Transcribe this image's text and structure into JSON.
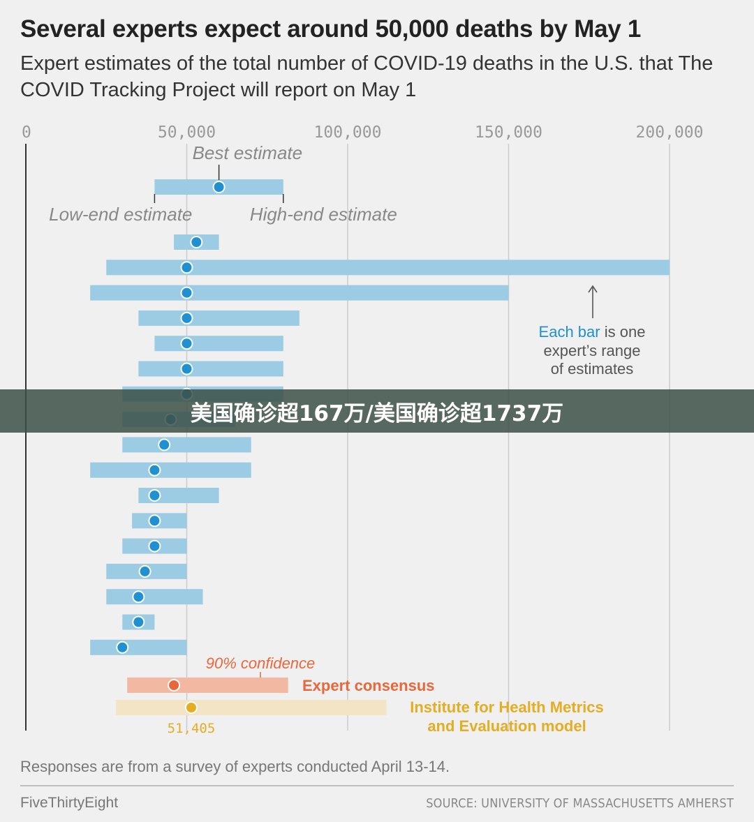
{
  "title": "Several experts expect around 50,000 deaths by May 1",
  "subtitle": "Expert estimates of the total number of COVID-19 deaths in the U.S. that The COVID Tracking Project will report on May 1",
  "footnote": "Responses are from a survey of experts conducted April 13-14.",
  "brand": "FiveThirtyEight",
  "source": "SOURCE: UNIVERSITY OF MASSACHUSETTS AMHERST",
  "overlay_caption": "美国确诊超167万/美国确诊超1737万",
  "colors": {
    "expert": "#9ccbe4",
    "expert_dot": "#1f90d0",
    "consensus": "#f3b8a2",
    "consensus_dot": "#e8683c",
    "ihme": "#f2e4c4",
    "ihme_dot": "#e4ad22",
    "grid": "#cccccc",
    "axis": "#333333"
  },
  "chart_data": {
    "type": "range-dot",
    "xlim": [
      0,
      200000
    ],
    "x_ticks": [
      0,
      50000,
      100000,
      150000,
      200000
    ],
    "x_tick_labels": [
      "0",
      "50,000",
      "100,000",
      "150,000",
      "200,000"
    ],
    "legend_example": {
      "low": 40000,
      "best": 60000,
      "high": 80000
    },
    "annotations": {
      "best": "Best estimate",
      "low": "Low-end estimate",
      "high": "High-end estimate",
      "bar_note_accent": "Each bar",
      "bar_note_rest": "is one",
      "bar_note_line2": "expert’s range",
      "bar_note_line3": "of estimates",
      "confidence": "90% confidence"
    },
    "experts": [
      {
        "low": 46000,
        "best": 53000,
        "high": 60000
      },
      {
        "low": 25000,
        "best": 50000,
        "high": 200000
      },
      {
        "low": 20000,
        "best": 50000,
        "high": 150000
      },
      {
        "low": 35000,
        "best": 50000,
        "high": 85000
      },
      {
        "low": 40000,
        "best": 50000,
        "high": 80000
      },
      {
        "low": 35000,
        "best": 50000,
        "high": 80000
      },
      {
        "low": 30000,
        "best": 50000,
        "high": 80000
      },
      {
        "low": 30000,
        "best": 45000,
        "high": 65000
      },
      {
        "low": 30000,
        "best": 43000,
        "high": 70000
      },
      {
        "low": 20000,
        "best": 40000,
        "high": 70000
      },
      {
        "low": 35000,
        "best": 40000,
        "high": 60000
      },
      {
        "low": 33000,
        "best": 40000,
        "high": 50000
      },
      {
        "low": 30000,
        "best": 40000,
        "high": 50000
      },
      {
        "low": 25000,
        "best": 37000,
        "high": 50000
      },
      {
        "low": 25000,
        "best": 35000,
        "high": 55000
      },
      {
        "low": 30000,
        "best": 35000,
        "high": 40000
      },
      {
        "low": 20000,
        "best": 30000,
        "high": 50000
      }
    ],
    "consensus": {
      "name": "Expert consensus",
      "low": 31500,
      "best": 46000,
      "high": 81500
    },
    "ihme": {
      "name_line1": "Institute for Health Metrics",
      "name_line2": "and Evaluation model",
      "low": 28000,
      "best": 51405,
      "high": 112000,
      "best_label": "51,405"
    }
  }
}
